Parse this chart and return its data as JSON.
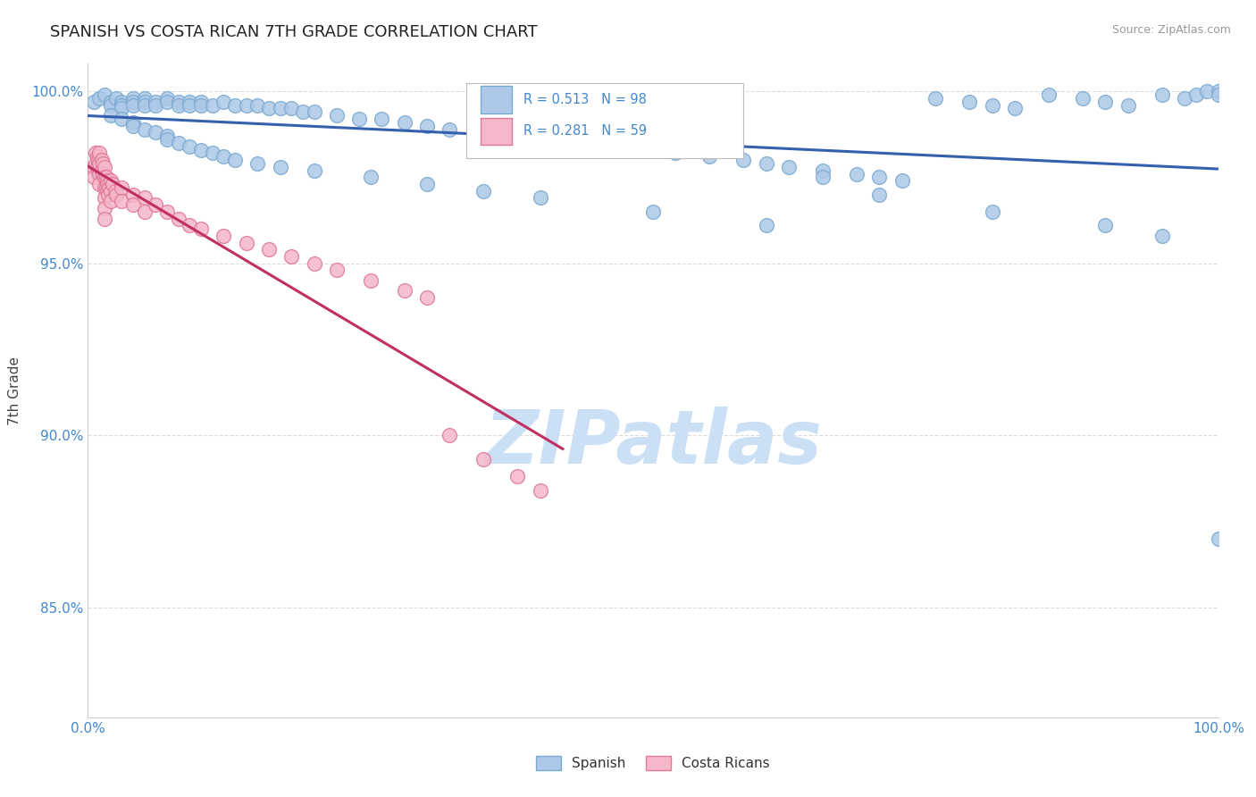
{
  "title": "SPANISH VS COSTA RICAN 7TH GRADE CORRELATION CHART",
  "source_text": "Source: ZipAtlas.com",
  "ylabel": "7th Grade",
  "xlim": [
    0.0,
    1.0
  ],
  "ylim": [
    0.818,
    1.008
  ],
  "yticks": [
    0.85,
    0.9,
    0.95,
    1.0
  ],
  "ytick_labels": [
    "85.0%",
    "90.0%",
    "95.0%",
    "100.0%"
  ],
  "xticks": [
    0.0,
    0.1,
    0.2,
    0.3,
    0.4,
    0.5,
    0.6,
    0.7,
    0.8,
    0.9,
    1.0
  ],
  "xtick_labels": [
    "0.0%",
    "",
    "",
    "",
    "",
    "",
    "",
    "",
    "",
    "",
    "100.0%"
  ],
  "spanish_color": "#adc8e8",
  "spanish_edge_color": "#7aaad0",
  "costa_color": "#f5b8cb",
  "costa_edge_color": "#e07898",
  "trend_spanish_color": "#3560ad",
  "trend_costa_color": "#c03060",
  "R_spanish": 0.513,
  "N_spanish": 98,
  "R_costa": 0.281,
  "N_costa": 59,
  "marker_size": 130,
  "watermark": "ZIPatlas",
  "watermark_color": "#cce0f5",
  "background_color": "#ffffff",
  "title_fontsize": 13,
  "axis_label_fontsize": 11,
  "tick_label_color": "#4488cc",
  "grid_color": "#cccccc",
  "legend_r_color": "#4488cc",
  "spanish_x": [
    0.005,
    0.01,
    0.015,
    0.02,
    0.02,
    0.025,
    0.03,
    0.03,
    0.03,
    0.04,
    0.04,
    0.04,
    0.05,
    0.05,
    0.05,
    0.06,
    0.06,
    0.07,
    0.07,
    0.08,
    0.08,
    0.09,
    0.09,
    0.1,
    0.1,
    0.11,
    0.12,
    0.13,
    0.14,
    0.15,
    0.16,
    0.17,
    0.18,
    0.19,
    0.2,
    0.22,
    0.24,
    0.26,
    0.28,
    0.3,
    0.32,
    0.35,
    0.38,
    0.4,
    0.45,
    0.5,
    0.52,
    0.55,
    0.58,
    0.6,
    0.62,
    0.65,
    0.68,
    0.7,
    0.72,
    0.75,
    0.78,
    0.8,
    0.82,
    0.85,
    0.88,
    0.9,
    0.92,
    0.95,
    0.97,
    0.98,
    0.99,
    1.0,
    1.0,
    0.02,
    0.03,
    0.04,
    0.04,
    0.05,
    0.06,
    0.07,
    0.07,
    0.08,
    0.09,
    0.1,
    0.11,
    0.12,
    0.13,
    0.15,
    0.17,
    0.2,
    0.25,
    0.3,
    0.35,
    0.4,
    0.5,
    0.6,
    0.65,
    0.7,
    0.8,
    0.9,
    0.95,
    1.0
  ],
  "spanish_y": [
    0.997,
    0.998,
    0.999,
    0.997,
    0.996,
    0.998,
    0.997,
    0.996,
    0.995,
    0.998,
    0.997,
    0.996,
    0.998,
    0.997,
    0.996,
    0.997,
    0.996,
    0.998,
    0.997,
    0.997,
    0.996,
    0.997,
    0.996,
    0.997,
    0.996,
    0.996,
    0.997,
    0.996,
    0.996,
    0.996,
    0.995,
    0.995,
    0.995,
    0.994,
    0.994,
    0.993,
    0.992,
    0.992,
    0.991,
    0.99,
    0.989,
    0.988,
    0.987,
    0.986,
    0.985,
    0.983,
    0.982,
    0.981,
    0.98,
    0.979,
    0.978,
    0.977,
    0.976,
    0.975,
    0.974,
    0.998,
    0.997,
    0.996,
    0.995,
    0.999,
    0.998,
    0.997,
    0.996,
    0.999,
    0.998,
    0.999,
    1.0,
    1.0,
    0.999,
    0.993,
    0.992,
    0.991,
    0.99,
    0.989,
    0.988,
    0.987,
    0.986,
    0.985,
    0.984,
    0.983,
    0.982,
    0.981,
    0.98,
    0.979,
    0.978,
    0.977,
    0.975,
    0.973,
    0.971,
    0.969,
    0.965,
    0.961,
    0.975,
    0.97,
    0.965,
    0.961,
    0.958,
    0.87
  ],
  "costa_x": [
    0.005,
    0.005,
    0.007,
    0.007,
    0.008,
    0.008,
    0.009,
    0.009,
    0.01,
    0.01,
    0.01,
    0.01,
    0.012,
    0.012,
    0.013,
    0.013,
    0.015,
    0.015,
    0.015,
    0.015,
    0.015,
    0.015,
    0.016,
    0.016,
    0.017,
    0.017,
    0.018,
    0.018,
    0.019,
    0.02,
    0.02,
    0.02,
    0.022,
    0.024,
    0.025,
    0.03,
    0.03,
    0.04,
    0.04,
    0.05,
    0.05,
    0.06,
    0.07,
    0.08,
    0.09,
    0.1,
    0.12,
    0.14,
    0.16,
    0.18,
    0.2,
    0.22,
    0.25,
    0.28,
    0.3,
    0.32,
    0.35,
    0.38,
    0.4
  ],
  "costa_y": [
    0.978,
    0.975,
    0.982,
    0.979,
    0.981,
    0.978,
    0.98,
    0.977,
    0.982,
    0.979,
    0.976,
    0.973,
    0.98,
    0.977,
    0.979,
    0.976,
    0.978,
    0.975,
    0.972,
    0.969,
    0.966,
    0.963,
    0.975,
    0.972,
    0.974,
    0.971,
    0.973,
    0.97,
    0.972,
    0.974,
    0.971,
    0.968,
    0.973,
    0.971,
    0.97,
    0.972,
    0.968,
    0.97,
    0.967,
    0.969,
    0.965,
    0.967,
    0.965,
    0.963,
    0.961,
    0.96,
    0.958,
    0.956,
    0.954,
    0.952,
    0.95,
    0.948,
    0.945,
    0.942,
    0.94,
    0.9,
    0.893,
    0.888,
    0.884
  ]
}
